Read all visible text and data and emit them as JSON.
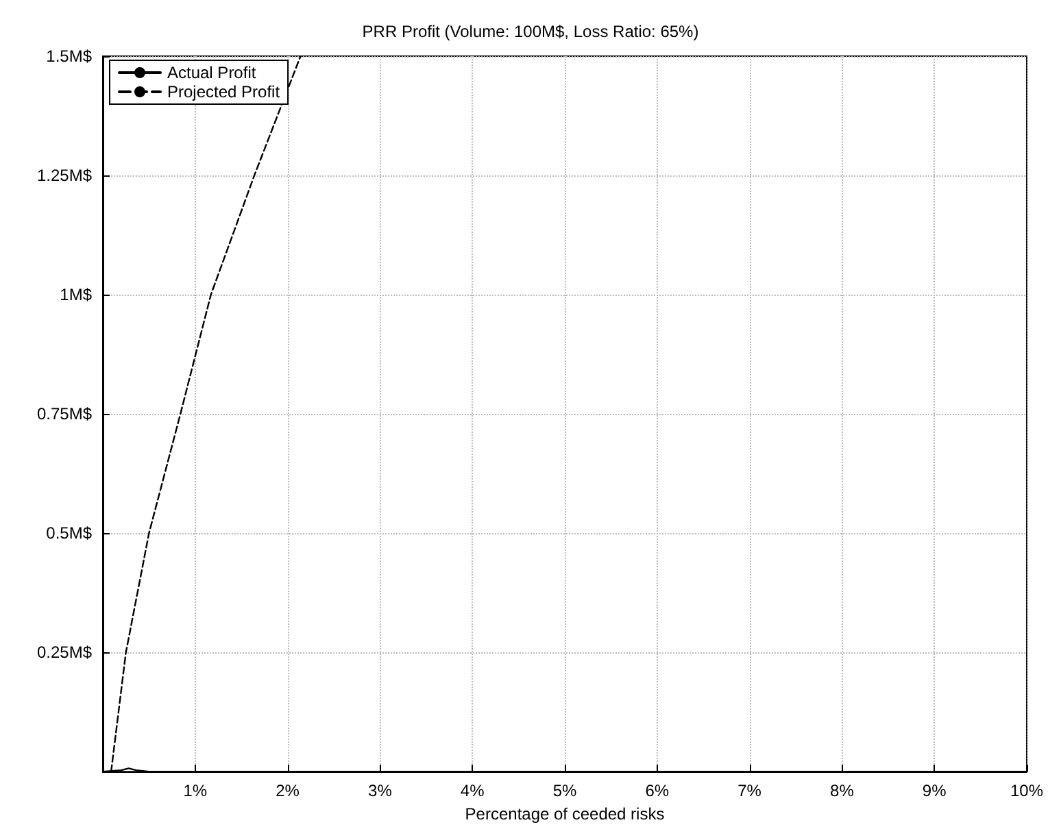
{
  "chart_data": {
    "type": "line",
    "title": "PRR Profit (Volume: 100M$, Loss Ratio: 65%)",
    "xlabel": "Percentage of ceeded risks",
    "series": [
      {
        "name": "Actual Profit",
        "color": "#000000",
        "line_style": "solid",
        "x": [
          0,
          0.2,
          0.28,
          0.36,
          0.5,
          1,
          2,
          3,
          4,
          5,
          6,
          7,
          8,
          9,
          10
        ],
        "values": [
          0,
          0.003,
          0.007,
          0.003,
          0,
          0,
          0,
          0,
          0,
          0,
          0,
          0,
          0,
          0,
          0
        ]
      },
      {
        "name": "Projected Profit",
        "color": "#000000",
        "line_style": "dashed",
        "x": [
          0.09,
          0.25,
          0.5,
          0.84,
          1.17,
          1.64,
          2.14
        ],
        "values": [
          0,
          0.25,
          0.5,
          0.75,
          1,
          1.25,
          1.5
        ]
      }
    ],
    "xlim": [
      0,
      10
    ],
    "ylim": [
      0,
      1.5
    ],
    "xticks": [
      {
        "value": 1,
        "label": "1%"
      },
      {
        "value": 2,
        "label": "2%"
      },
      {
        "value": 3,
        "label": "3%"
      },
      {
        "value": 4,
        "label": "4%"
      },
      {
        "value": 5,
        "label": "5%"
      },
      {
        "value": 6,
        "label": "6%"
      },
      {
        "value": 7,
        "label": "7%"
      },
      {
        "value": 8,
        "label": "8%"
      },
      {
        "value": 9,
        "label": "9%"
      },
      {
        "value": 10,
        "label": "10%"
      }
    ],
    "yticks": [
      {
        "value": 0.25,
        "label": "0.25M$"
      },
      {
        "value": 0.5,
        "label": "0.5M$"
      },
      {
        "value": 0.75,
        "label": "0.75M$"
      },
      {
        "value": 1,
        "label": "1M$"
      },
      {
        "value": 1.25,
        "label": "1.25M$"
      },
      {
        "value": 1.5,
        "label": "1.5M$"
      }
    ],
    "grid": true,
    "legend": "top left",
    "marker": "none"
  }
}
